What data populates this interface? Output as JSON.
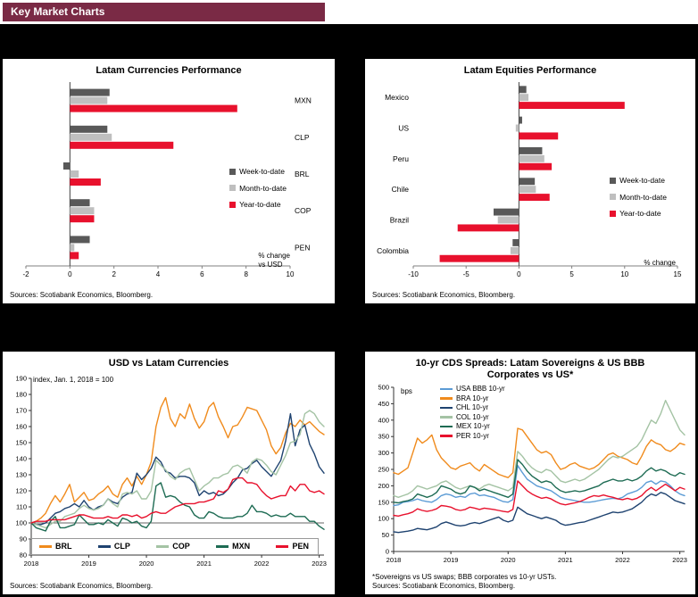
{
  "header": {
    "title": "Key Market Charts"
  },
  "colors": {
    "header_bg": "#7a2a45",
    "week": "#595959",
    "month": "#bfbfbf",
    "year": "#e8112d",
    "brl": "#f08b1d",
    "clp": "#1f4370",
    "cop": "#a4c3a4",
    "mxn": "#1d6b53",
    "pen": "#e8112d",
    "usa_bbb": "#5b9bd5"
  },
  "chart_data": [
    {
      "type": "bar",
      "orientation": "horizontal",
      "title": "Latam Currencies Performance",
      "categories": [
        "MXN",
        "CLP",
        "BRL",
        "COP",
        "PEN"
      ],
      "series": [
        {
          "name": "Week-to-date",
          "color": "#595959",
          "values": [
            1.8,
            1.7,
            -0.3,
            0.9,
            0.9
          ]
        },
        {
          "name": "Month-to-date",
          "color": "#bfbfbf",
          "values": [
            1.7,
            1.9,
            0.4,
            1.1,
            0.2
          ]
        },
        {
          "name": "Year-to-date",
          "color": "#e8112d",
          "values": [
            7.6,
            4.7,
            1.4,
            1.1,
            0.4
          ]
        }
      ],
      "xlim": [
        -2,
        10
      ],
      "xticks": [
        -2,
        0,
        2,
        4,
        6,
        8,
        10
      ],
      "labels_side": "right",
      "note": "% change\nvs USD",
      "source": "Sources: Scotiabank Economics, Bloomberg."
    },
    {
      "type": "bar",
      "orientation": "horizontal",
      "title": "Latam Equities  Performance",
      "categories": [
        "Mexico",
        "US",
        "Peru",
        "Chile",
        "Brazil",
        "Colombia"
      ],
      "series": [
        {
          "name": "Week-to-date",
          "color": "#595959",
          "values": [
            0.7,
            0.3,
            2.2,
            1.5,
            -2.4,
            -0.6
          ]
        },
        {
          "name": "Month-to-date",
          "color": "#bfbfbf",
          "values": [
            0.9,
            -0.3,
            2.4,
            1.6,
            -2.0,
            -0.8
          ]
        },
        {
          "name": "Year-to-date",
          "color": "#e8112d",
          "values": [
            10.0,
            3.7,
            3.1,
            2.9,
            -5.8,
            -7.5
          ]
        }
      ],
      "xlim": [
        -10,
        15
      ],
      "xticks": [
        -10,
        -5,
        0,
        5,
        10,
        15
      ],
      "labels_side": "left",
      "note": "% change",
      "source": "Sources: Scotiabank Economics, Bloomberg."
    },
    {
      "type": "line",
      "title": "USD vs Latam Currencies",
      "note": "index, Jan. 1, 2018 = 100",
      "ylim": [
        80,
        190
      ],
      "ytick_step": 10,
      "x_start_year": 2018,
      "xticks": [
        2018,
        2019,
        2020,
        2021,
        2022,
        2023
      ],
      "ref_line": 100,
      "series": [
        {
          "name": "BRL",
          "color": "#f08b1d",
          "values": [
            100,
            101,
            103,
            106,
            112,
            117,
            113,
            118,
            124,
            113,
            116,
            119,
            114,
            115,
            118,
            120,
            123,
            118,
            116,
            124,
            128,
            123,
            129,
            124,
            130,
            138,
            160,
            172,
            178,
            165,
            160,
            168,
            165,
            174,
            165,
            159,
            163,
            172,
            175,
            166,
            160,
            153,
            160,
            161,
            166,
            172,
            171,
            170,
            164,
            158,
            148,
            143,
            147,
            156,
            162,
            160,
            164,
            161,
            163,
            160,
            157,
            155
          ]
        },
        {
          "name": "CLP",
          "color": "#1f4370",
          "values": [
            100,
            99,
            99,
            100,
            103,
            106,
            107,
            109,
            110,
            112,
            110,
            114,
            110,
            108,
            110,
            111,
            115,
            113,
            112,
            116,
            118,
            119,
            131,
            127,
            130,
            134,
            141,
            138,
            132,
            131,
            128,
            129,
            129,
            128,
            125,
            117,
            120,
            118,
            119,
            117,
            118,
            121,
            125,
            128,
            133,
            134,
            137,
            139,
            135,
            132,
            129,
            134,
            139,
            151,
            168,
            148,
            158,
            161,
            149,
            143,
            135,
            131
          ]
        },
        {
          "name": "COP",
          "color": "#a4c3a4",
          "values": [
            100,
            99,
            98,
            97,
            99,
            101,
            101,
            104,
            105,
            106,
            109,
            111,
            109,
            108,
            109,
            111,
            115,
            112,
            110,
            118,
            119,
            118,
            120,
            115,
            115,
            120,
            139,
            136,
            133,
            129,
            127,
            131,
            133,
            134,
            127,
            120,
            123,
            125,
            128,
            128,
            130,
            131,
            135,
            136,
            134,
            131,
            138,
            140,
            139,
            136,
            132,
            130,
            136,
            142,
            150,
            151,
            155,
            168,
            170,
            168,
            163,
            160
          ]
        },
        {
          "name": "MXN",
          "color": "#1d6b53",
          "values": [
            100,
            97,
            96,
            95,
            101,
            104,
            97,
            97,
            98,
            99,
            105,
            102,
            99,
            99,
            100,
            99,
            102,
            100,
            98,
            103,
            102,
            100,
            101,
            98,
            97,
            101,
            123,
            125,
            116,
            117,
            116,
            113,
            111,
            110,
            105,
            103,
            103,
            107,
            106,
            104,
            103,
            103,
            103,
            104,
            104,
            106,
            111,
            107,
            107,
            106,
            104,
            105,
            104,
            104,
            106,
            104,
            104,
            104,
            101,
            101,
            98,
            96
          ]
        },
        {
          "name": "PEN",
          "color": "#e8112d",
          "values": [
            100,
            101,
            101,
            101,
            102,
            102,
            102,
            102,
            103,
            104,
            105,
            105,
            104,
            103,
            103,
            103,
            104,
            103,
            103,
            105,
            105,
            104,
            105,
            103,
            104,
            106,
            107,
            106,
            106,
            108,
            110,
            111,
            112,
            112,
            112,
            113,
            113,
            114,
            115,
            120,
            119,
            121,
            127,
            128,
            128,
            125,
            125,
            124,
            120,
            117,
            115,
            116,
            117,
            117,
            123,
            120,
            124,
            124,
            120,
            119,
            120,
            118
          ]
        }
      ],
      "source": "Sources: Scotiabank Economics, Bloomberg."
    },
    {
      "type": "line",
      "title": "10-yr CDS  Spreads: Latam Sovereigns & US BBB Corporates vs US*",
      "note": "bps",
      "ylim": [
        0,
        500
      ],
      "ytick_step": 50,
      "x_start_year": 2018,
      "xticks": [
        2018,
        2019,
        2020,
        2021,
        2022,
        2023
      ],
      "series": [
        {
          "name": "USA BBB 10-yr",
          "color": "#5b9bd5",
          "values": [
            140,
            142,
            150,
            152,
            155,
            160,
            155,
            152,
            150,
            158,
            170,
            175,
            172,
            165,
            168,
            165,
            175,
            178,
            170,
            172,
            168,
            165,
            158,
            152,
            150,
            158,
            262,
            240,
            220,
            210,
            200,
            195,
            190,
            185,
            175,
            165,
            160,
            158,
            155,
            152,
            150,
            150,
            152,
            155,
            158,
            160,
            162,
            160,
            165,
            175,
            180,
            185,
            195,
            210,
            215,
            205,
            215,
            212,
            200,
            185,
            175,
            170
          ]
        },
        {
          "name": "BRA 10-yr",
          "color": "#f08b1d",
          "values": [
            240,
            235,
            245,
            255,
            300,
            345,
            330,
            340,
            355,
            310,
            285,
            270,
            255,
            250,
            260,
            265,
            270,
            255,
            245,
            265,
            255,
            245,
            235,
            230,
            225,
            240,
            375,
            370,
            350,
            330,
            310,
            300,
            305,
            295,
            270,
            250,
            255,
            265,
            270,
            260,
            255,
            250,
            255,
            265,
            280,
            295,
            300,
            290,
            285,
            280,
            270,
            265,
            290,
            320,
            340,
            330,
            325,
            310,
            305,
            315,
            330,
            325
          ]
        },
        {
          "name": "CHL 10-yr",
          "color": "#1f4370",
          "values": [
            60,
            58,
            60,
            62,
            65,
            70,
            68,
            66,
            70,
            75,
            85,
            90,
            85,
            80,
            78,
            80,
            85,
            88,
            85,
            90,
            95,
            100,
            105,
            95,
            90,
            95,
            135,
            125,
            115,
            110,
            105,
            100,
            105,
            100,
            95,
            85,
            80,
            82,
            85,
            88,
            90,
            95,
            100,
            105,
            110,
            115,
            120,
            118,
            120,
            125,
            130,
            140,
            150,
            165,
            175,
            170,
            180,
            175,
            165,
            155,
            150,
            145
          ]
        },
        {
          "name": "COL 10-yr",
          "color": "#a4c3a4",
          "values": [
            170,
            165,
            170,
            175,
            185,
            200,
            195,
            190,
            195,
            200,
            210,
            215,
            205,
            195,
            190,
            195,
            200,
            195,
            190,
            200,
            205,
            200,
            195,
            190,
            185,
            195,
            305,
            290,
            270,
            255,
            245,
            240,
            250,
            245,
            230,
            215,
            210,
            215,
            220,
            215,
            220,
            230,
            240,
            250,
            265,
            280,
            290,
            285,
            290,
            300,
            310,
            320,
            340,
            370,
            400,
            390,
            420,
            460,
            430,
            400,
            370,
            355
          ]
        },
        {
          "name": "MEX 10-yr",
          "color": "#1d6b53",
          "values": [
            150,
            148,
            152,
            155,
            160,
            175,
            170,
            165,
            170,
            180,
            200,
            195,
            190,
            180,
            175,
            180,
            200,
            195,
            185,
            190,
            185,
            180,
            175,
            170,
            165,
            175,
            280,
            265,
            245,
            230,
            220,
            210,
            215,
            210,
            195,
            185,
            180,
            182,
            185,
            182,
            185,
            190,
            195,
            200,
            210,
            215,
            220,
            215,
            215,
            220,
            215,
            220,
            230,
            245,
            255,
            245,
            250,
            245,
            235,
            230,
            240,
            235
          ]
        },
        {
          "name": "PER 10-yr",
          "color": "#e8112d",
          "values": [
            110,
            108,
            112,
            115,
            120,
            130,
            125,
            122,
            125,
            130,
            140,
            138,
            135,
            128,
            125,
            128,
            135,
            132,
            128,
            132,
            130,
            128,
            125,
            122,
            120,
            128,
            215,
            200,
            185,
            175,
            168,
            162,
            165,
            160,
            152,
            145,
            142,
            145,
            148,
            152,
            158,
            165,
            170,
            168,
            172,
            168,
            165,
            160,
            158,
            162,
            158,
            162,
            170,
            185,
            195,
            185,
            195,
            205,
            195,
            185,
            195,
            190
          ]
        }
      ],
      "footnote": "*Sovereigns vs US swaps; BBB corporates  vs 10-yr USTs.",
      "source": "Sources: Scotiabank Economics, Bloomberg."
    }
  ]
}
